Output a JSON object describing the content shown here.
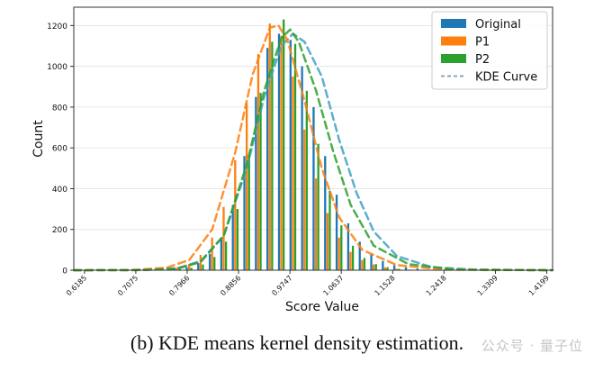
{
  "chart_data": {
    "type": "bar",
    "xlabel": "Score Value",
    "ylabel": "Count",
    "ylim": [
      0,
      1290
    ],
    "xlim": [
      0.6,
      1.43
    ],
    "yticks": [
      0,
      200,
      400,
      600,
      800,
      1000,
      1200
    ],
    "xticks": [
      "0.6185",
      "0.7075",
      "0.7966",
      "0.8856",
      "0.9747",
      "1.0637",
      "1.1528",
      "1.2418",
      "1.3309",
      "1.4199"
    ],
    "grid": "horizontal",
    "legend_position": "top-right",
    "bins_x": [
      0.62,
      0.66,
      0.7,
      0.74,
      0.78,
      0.8,
      0.82,
      0.84,
      0.86,
      0.88,
      0.9,
      0.92,
      0.94,
      0.96,
      0.98,
      1.0,
      1.02,
      1.04,
      1.06,
      1.08,
      1.1,
      1.12,
      1.14,
      1.16,
      1.18,
      1.2,
      1.24,
      1.28,
      1.32,
      1.36,
      1.4
    ],
    "series": [
      {
        "name": "Original",
        "color": "#1f77b4",
        "values": [
          0,
          0,
          0,
          2,
          8,
          15,
          35,
          80,
          160,
          320,
          560,
          850,
          1090,
          1160,
          1130,
          1000,
          800,
          560,
          370,
          230,
          140,
          80,
          45,
          25,
          15,
          8,
          3,
          1,
          0,
          0,
          0
        ]
      },
      {
        "name": "P1",
        "color": "#ff7f0e",
        "values": [
          0,
          0,
          1,
          4,
          15,
          30,
          75,
          160,
          310,
          540,
          820,
          1060,
          1210,
          1150,
          950,
          690,
          450,
          280,
          160,
          90,
          50,
          28,
          14,
          7,
          3,
          1,
          0,
          0,
          0,
          0,
          0
        ]
      },
      {
        "name": "P2",
        "color": "#2ca02c",
        "values": [
          0,
          0,
          0,
          2,
          6,
          12,
          28,
          65,
          140,
          300,
          560,
          870,
          1120,
          1230,
          1110,
          880,
          620,
          390,
          220,
          120,
          60,
          30,
          15,
          7,
          3,
          1,
          0,
          0,
          0,
          0,
          0
        ]
      }
    ],
    "kde_curve": {
      "name": "KDE Curve",
      "curves": [
        {
          "color": "#3fa1c4",
          "x": [
            0.6,
            0.72,
            0.78,
            0.82,
            0.86,
            0.9,
            0.93,
            0.96,
            0.98,
            1.0,
            1.03,
            1.06,
            1.09,
            1.12,
            1.16,
            1.22,
            1.3,
            1.43
          ],
          "y": [
            0,
            1,
            10,
            45,
            170,
            500,
            850,
            1100,
            1160,
            1120,
            950,
            640,
            380,
            190,
            70,
            15,
            2,
            0
          ]
        },
        {
          "color": "#ff7f0e",
          "x": [
            0.6,
            0.7,
            0.76,
            0.8,
            0.84,
            0.88,
            0.91,
            0.94,
            0.955,
            0.97,
            1.0,
            1.03,
            1.06,
            1.1,
            1.16,
            1.24,
            1.43
          ],
          "y": [
            0,
            1,
            12,
            50,
            200,
            580,
            960,
            1190,
            1200,
            1130,
            830,
            500,
            260,
            100,
            25,
            3,
            0
          ]
        },
        {
          "color": "#2ca02c",
          "x": [
            0.6,
            0.72,
            0.78,
            0.82,
            0.86,
            0.9,
            0.93,
            0.96,
            0.975,
            0.99,
            1.02,
            1.05,
            1.08,
            1.12,
            1.18,
            1.26,
            1.43
          ],
          "y": [
            0,
            1,
            8,
            40,
            170,
            520,
            880,
            1140,
            1180,
            1120,
            880,
            580,
            320,
            120,
            30,
            3,
            0
          ]
        }
      ]
    }
  },
  "caption": "(b) KDE means kernel density estimation.",
  "watermark": "公众号 · 量子位"
}
